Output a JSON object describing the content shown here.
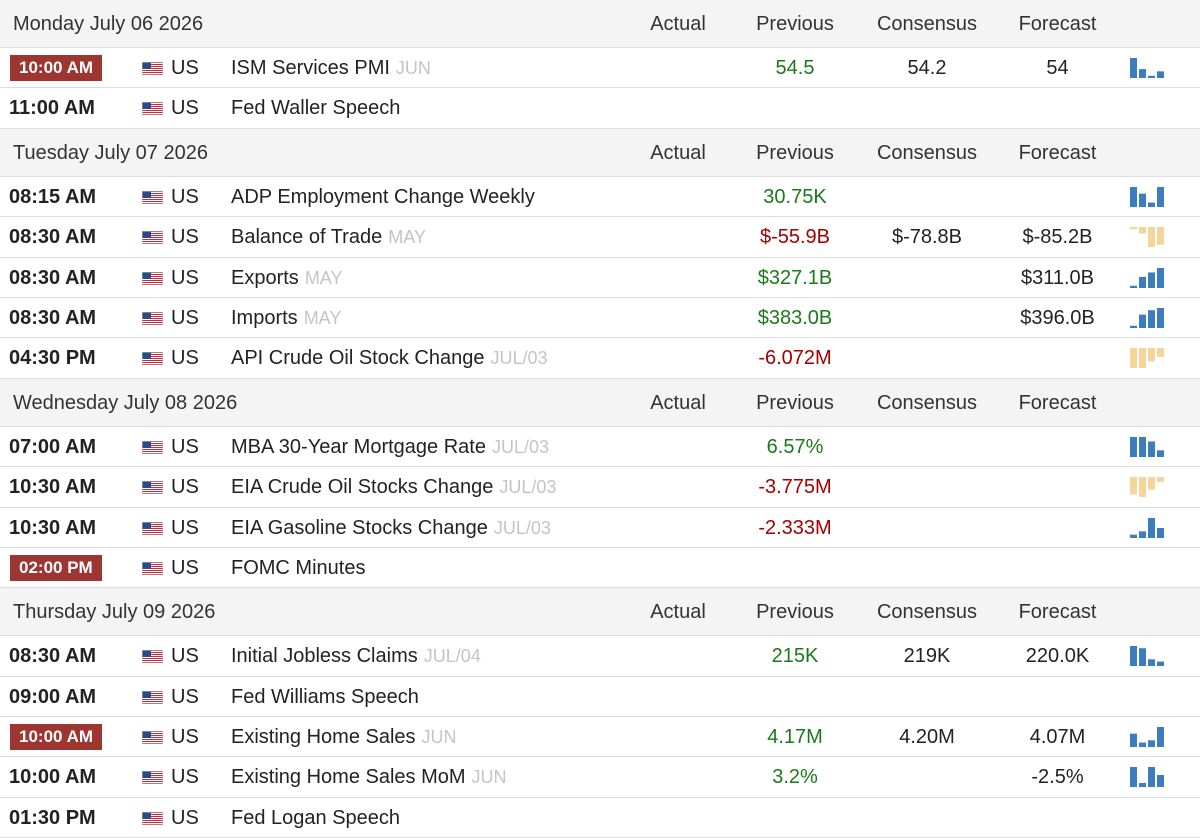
{
  "columns": {
    "actual": "Actual",
    "previous": "Previous",
    "consensus": "Consensus",
    "forecast": "Forecast"
  },
  "colors": {
    "positive": "#1a7a1a",
    "negative": "#a30000",
    "spark_up": "#3b7dbf",
    "spark_down": "#f6d59a",
    "highlight_time": "#9d3530"
  },
  "days": [
    {
      "date": "Monday July 06 2026",
      "events": [
        {
          "time": "10:00 AM",
          "highlight": true,
          "country": "US",
          "event": "ISM Services PMI",
          "ref": "JUN",
          "actual": "",
          "previous": "54.5",
          "prev_sign": "pos",
          "consensus": "54.2",
          "forecast": "54",
          "spark": {
            "dir": "up",
            "values": [
              9,
              4,
              1,
              3
            ]
          }
        },
        {
          "time": "11:00 AM",
          "highlight": false,
          "country": "US",
          "event": "Fed Waller Speech",
          "ref": "",
          "actual": "",
          "previous": "",
          "prev_sign": "",
          "consensus": "",
          "forecast": "",
          "spark": null
        }
      ]
    },
    {
      "date": "Tuesday July 07 2026",
      "events": [
        {
          "time": "08:15 AM",
          "highlight": false,
          "country": "US",
          "event": "ADP Employment Change Weekly",
          "ref": "",
          "actual": "",
          "previous": "30.75K",
          "prev_sign": "pos",
          "consensus": "",
          "forecast": "",
          "spark": {
            "dir": "up",
            "values": [
              9,
              6,
              2,
              9
            ]
          }
        },
        {
          "time": "08:30 AM",
          "highlight": false,
          "country": "US",
          "event": "Balance of Trade",
          "ref": "MAY",
          "actual": "",
          "previous": "$-55.9B",
          "prev_sign": "neg",
          "consensus": "$-78.8B",
          "forecast": "$-85.2B",
          "spark": {
            "dir": "down",
            "values": [
              1,
              3,
              9,
              8
            ]
          }
        },
        {
          "time": "08:30 AM",
          "highlight": false,
          "country": "US",
          "event": "Exports",
          "ref": "MAY",
          "actual": "",
          "previous": "$327.1B",
          "prev_sign": "pos",
          "consensus": "",
          "forecast": "$311.0B",
          "spark": {
            "dir": "up",
            "values": [
              1,
              5,
              7,
              9
            ]
          }
        },
        {
          "time": "08:30 AM",
          "highlight": false,
          "country": "US",
          "event": "Imports",
          "ref": "MAY",
          "actual": "",
          "previous": "$383.0B",
          "prev_sign": "pos",
          "consensus": "",
          "forecast": "$396.0B",
          "spark": {
            "dir": "up",
            "values": [
              1,
              6,
              8,
              9
            ]
          }
        },
        {
          "time": "04:30 PM",
          "highlight": false,
          "country": "US",
          "event": "API Crude Oil Stock Change",
          "ref": "JUL/03",
          "actual": "",
          "previous": "-6.072M",
          "prev_sign": "neg",
          "consensus": "",
          "forecast": "",
          "spark": {
            "dir": "down",
            "values": [
              9,
              9,
              6,
              4
            ]
          }
        }
      ]
    },
    {
      "date": "Wednesday July 08 2026",
      "events": [
        {
          "time": "07:00 AM",
          "highlight": false,
          "country": "US",
          "event": "MBA 30-Year Mortgage Rate",
          "ref": "JUL/03",
          "actual": "",
          "previous": "6.57%",
          "prev_sign": "pos",
          "consensus": "",
          "forecast": "",
          "spark": {
            "dir": "up",
            "values": [
              9,
              9,
              7,
              3
            ]
          }
        },
        {
          "time": "10:30 AM",
          "highlight": false,
          "country": "US",
          "event": "EIA Crude Oil Stocks Change",
          "ref": "JUL/03",
          "actual": "",
          "previous": "-3.775M",
          "prev_sign": "neg",
          "consensus": "",
          "forecast": "",
          "spark": {
            "dir": "down",
            "values": [
              7,
              8,
              5,
              2
            ]
          }
        },
        {
          "time": "10:30 AM",
          "highlight": false,
          "country": "US",
          "event": "EIA Gasoline Stocks Change",
          "ref": "JUL/03",
          "actual": "",
          "previous": "-2.333M",
          "prev_sign": "neg",
          "consensus": "",
          "forecast": "",
          "spark": {
            "dir": "up",
            "values": [
              1,
              2,
              6,
              3
            ]
          }
        },
        {
          "time": "02:00 PM",
          "highlight": true,
          "country": "US",
          "event": "FOMC Minutes",
          "ref": "",
          "actual": "",
          "previous": "",
          "prev_sign": "",
          "consensus": "",
          "forecast": "",
          "spark": null
        }
      ]
    },
    {
      "date": "Thursday July 09 2026",
      "events": [
        {
          "time": "08:30 AM",
          "highlight": false,
          "country": "US",
          "event": "Initial Jobless Claims",
          "ref": "JUL/04",
          "actual": "",
          "previous": "215K",
          "prev_sign": "pos",
          "consensus": "219K",
          "forecast": "220.0K",
          "spark": {
            "dir": "up",
            "values": [
              9,
              8,
              3,
              2
            ]
          }
        },
        {
          "time": "09:00 AM",
          "highlight": false,
          "country": "US",
          "event": "Fed Williams Speech",
          "ref": "",
          "actual": "",
          "previous": "",
          "prev_sign": "",
          "consensus": "",
          "forecast": "",
          "spark": null
        }
      ]
    },
    {
      "date": "",
      "events": [
        {
          "time": "10:00 AM",
          "highlight": true,
          "country": "US",
          "event": "Existing Home Sales",
          "ref": "JUN",
          "actual": "",
          "previous": "4.17M",
          "prev_sign": "pos",
          "consensus": "4.20M",
          "forecast": "4.07M",
          "spark": {
            "dir": "up",
            "values": [
              6,
              2,
              3,
              9
            ]
          }
        },
        {
          "time": "10:00 AM",
          "highlight": false,
          "country": "US",
          "event": "Existing Home Sales MoM",
          "ref": "JUN",
          "actual": "",
          "previous": "3.2%",
          "prev_sign": "pos",
          "consensus": "",
          "forecast": "-2.5%",
          "spark": {
            "dir": "up",
            "values": [
              5,
              1,
              5,
              3
            ]
          }
        },
        {
          "time": "01:30 PM",
          "highlight": false,
          "country": "US",
          "event": "Fed Logan Speech",
          "ref": "",
          "actual": "",
          "previous": "",
          "prev_sign": "",
          "consensus": "",
          "forecast": "",
          "spark": null
        }
      ]
    }
  ]
}
